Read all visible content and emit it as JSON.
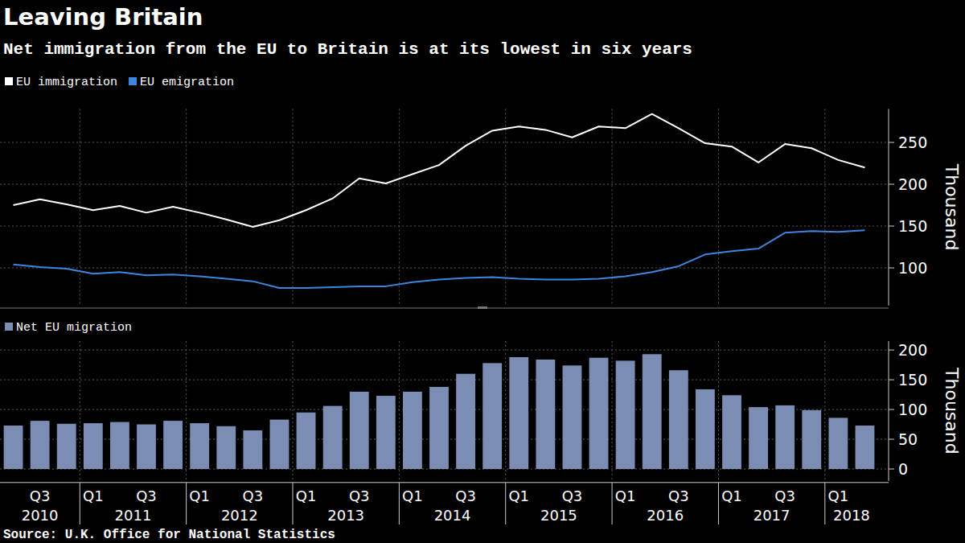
{
  "chart_data": [
    {
      "type": "line",
      "title": "Leaving Britain",
      "subtitle": "Net immigration from the EU to Britain is at its lowest in six years",
      "series": [
        {
          "name": "EU immigration",
          "color": "#ffffff",
          "values": [
            175,
            182,
            176,
            169,
            174,
            166,
            173,
            166,
            158,
            149,
            157,
            169,
            183,
            207,
            201,
            212,
            223,
            246,
            264,
            269,
            265,
            256,
            269,
            267,
            284,
            267,
            249,
            245,
            226,
            248,
            243,
            229,
            220
          ]
        },
        {
          "name": "EU emigration",
          "color": "#3d86e0",
          "values": [
            104,
            101,
            99,
            93,
            95,
            91,
            92,
            90,
            87,
            84,
            76,
            76,
            77,
            78,
            78,
            83,
            86,
            88,
            89,
            87,
            86,
            86,
            87,
            90,
            95,
            102,
            116,
            120,
            123,
            142,
            144,
            143,
            145
          ]
        }
      ],
      "ylim": [
        55,
        290
      ],
      "yticks": [
        100,
        150,
        200,
        250
      ],
      "y_label": "Thousand",
      "grid": true,
      "legend": "top-left"
    },
    {
      "type": "bar",
      "categories": [
        null,
        "Q3",
        null,
        "Q1",
        null,
        "Q3",
        null,
        "Q1",
        null,
        "Q3",
        null,
        "Q1",
        null,
        "Q3",
        null,
        "Q1",
        null,
        "Q3",
        null,
        "Q1",
        null,
        "Q3",
        null,
        "Q1",
        null,
        "Q3",
        null,
        "Q1",
        null,
        "Q3",
        null,
        "Q1",
        null
      ],
      "years": [
        "2010",
        "2010",
        "2010",
        "2011",
        "2011",
        "2011",
        "2011",
        "2012",
        "2012",
        "2012",
        "2012",
        "2013",
        "2013",
        "2013",
        "2013",
        "2014",
        "2014",
        "2014",
        "2014",
        "2015",
        "2015",
        "2015",
        "2015",
        "2016",
        "2016",
        "2016",
        "2016",
        "2017",
        "2017",
        "2017",
        "2017",
        "2018",
        "2018"
      ],
      "series": [
        {
          "name": "Net EU migration",
          "color": "#7b8db3",
          "values": [
            73,
            81,
            76,
            77,
            79,
            75,
            81,
            77,
            72,
            65,
            83,
            95,
            106,
            130,
            123,
            130,
            138,
            160,
            178,
            188,
            184,
            174,
            187,
            182,
            193,
            166,
            134,
            124,
            104,
            107,
            99,
            86,
            73
          ]
        }
      ],
      "ylim": [
        -20,
        215
      ],
      "yticks": [
        0,
        50,
        100,
        150,
        200
      ],
      "y_label": "Thousand",
      "grid": true,
      "legend": "top-left",
      "source": "Source: U.K. Office for National Statistics"
    }
  ]
}
